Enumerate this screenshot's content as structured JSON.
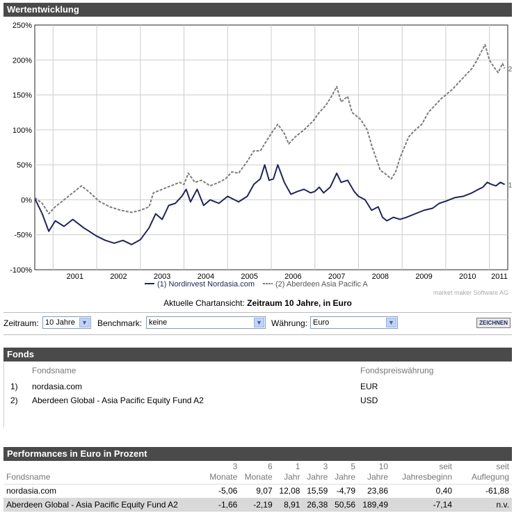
{
  "chart_header": "Wertentwicklung",
  "caption_prefix": "Aktuelle Chartansicht: ",
  "caption_bold": "Zeitraum 10 Jahre, in Euro",
  "watermark": "market maker Software AG",
  "chart_data": {
    "type": "line",
    "title": "",
    "xlabel": "",
    "ylabel": "",
    "ylim": [
      -100,
      250
    ],
    "y_ticks": [
      -100,
      -50,
      0,
      50,
      100,
      150,
      200,
      250
    ],
    "y_tick_labels": [
      "-100%",
      "-50%",
      "0%",
      "50%",
      "100%",
      "150%",
      "200%",
      "250%"
    ],
    "x_range": [
      2000.58,
      2011.42
    ],
    "x_tick_labels": [
      "2001",
      "2002",
      "2003",
      "2004",
      "2005",
      "2006",
      "2007",
      "2008",
      "2009",
      "2010",
      "2011"
    ],
    "grid": true,
    "legend": [
      "(1) Nordinvest Nordasia.com",
      "(2) Aberdeen Asia Pacific A"
    ],
    "legend_position": "bottom",
    "series": [
      {
        "name": "(1) Nordinvest Nordasia.com",
        "end_label": "1",
        "color": "#1f2459",
        "dash": "solid",
        "points": [
          [
            2000.58,
            2
          ],
          [
            2000.75,
            -20
          ],
          [
            2000.9,
            -45
          ],
          [
            2001.05,
            -30
          ],
          [
            2001.25,
            -38
          ],
          [
            2001.45,
            -28
          ],
          [
            2001.7,
            -40
          ],
          [
            2002.0,
            -52
          ],
          [
            2002.2,
            -58
          ],
          [
            2002.4,
            -62
          ],
          [
            2002.6,
            -58
          ],
          [
            2002.8,
            -64
          ],
          [
            2003.0,
            -57
          ],
          [
            2003.2,
            -40
          ],
          [
            2003.35,
            -20
          ],
          [
            2003.5,
            -28
          ],
          [
            2003.65,
            -8
          ],
          [
            2003.8,
            -5
          ],
          [
            2003.95,
            5
          ],
          [
            2004.05,
            15
          ],
          [
            2004.15,
            -3
          ],
          [
            2004.3,
            15
          ],
          [
            2004.45,
            -8
          ],
          [
            2004.6,
            0
          ],
          [
            2004.8,
            -5
          ],
          [
            2005.0,
            5
          ],
          [
            2005.25,
            -3
          ],
          [
            2005.45,
            5
          ],
          [
            2005.6,
            22
          ],
          [
            2005.75,
            30
          ],
          [
            2005.85,
            50
          ],
          [
            2005.95,
            28
          ],
          [
            2006.05,
            30
          ],
          [
            2006.15,
            50
          ],
          [
            2006.3,
            25
          ],
          [
            2006.45,
            8
          ],
          [
            2006.6,
            12
          ],
          [
            2006.75,
            15
          ],
          [
            2006.9,
            10
          ],
          [
            2007.0,
            12
          ],
          [
            2007.1,
            18
          ],
          [
            2007.2,
            10
          ],
          [
            2007.35,
            18
          ],
          [
            2007.5,
            38
          ],
          [
            2007.6,
            25
          ],
          [
            2007.75,
            28
          ],
          [
            2007.9,
            12
          ],
          [
            2008.0,
            5
          ],
          [
            2008.15,
            0
          ],
          [
            2008.3,
            -15
          ],
          [
            2008.45,
            -10
          ],
          [
            2008.55,
            -25
          ],
          [
            2008.65,
            -30
          ],
          [
            2008.8,
            -25
          ],
          [
            2008.95,
            -28
          ],
          [
            2009.1,
            -25
          ],
          [
            2009.3,
            -20
          ],
          [
            2009.5,
            -15
          ],
          [
            2009.7,
            -12
          ],
          [
            2009.85,
            -5
          ],
          [
            2010.0,
            -2
          ],
          [
            2010.2,
            3
          ],
          [
            2010.4,
            5
          ],
          [
            2010.6,
            10
          ],
          [
            2010.75,
            15
          ],
          [
            2010.85,
            18
          ],
          [
            2010.95,
            25
          ],
          [
            2011.05,
            22
          ],
          [
            2011.15,
            20
          ],
          [
            2011.25,
            25
          ],
          [
            2011.35,
            22
          ]
        ]
      },
      {
        "name": "(2) Aberdeen Asia Pacific A",
        "end_label": "2",
        "color": "#7c7c7c",
        "dash": "4,2",
        "points": [
          [
            2000.58,
            3
          ],
          [
            2000.75,
            -5
          ],
          [
            2000.9,
            -20
          ],
          [
            2001.05,
            -10
          ],
          [
            2001.25,
            0
          ],
          [
            2001.45,
            10
          ],
          [
            2001.65,
            20
          ],
          [
            2001.85,
            10
          ],
          [
            2002.05,
            -2
          ],
          [
            2002.3,
            -10
          ],
          [
            2002.55,
            -15
          ],
          [
            2002.8,
            -18
          ],
          [
            2003.0,
            -15
          ],
          [
            2003.2,
            -10
          ],
          [
            2003.3,
            10
          ],
          [
            2003.5,
            15
          ],
          [
            2003.7,
            20
          ],
          [
            2003.9,
            25
          ],
          [
            2004.0,
            22
          ],
          [
            2004.1,
            38
          ],
          [
            2004.25,
            25
          ],
          [
            2004.4,
            28
          ],
          [
            2004.6,
            20
          ],
          [
            2004.8,
            25
          ],
          [
            2004.95,
            30
          ],
          [
            2005.1,
            40
          ],
          [
            2005.25,
            38
          ],
          [
            2005.45,
            55
          ],
          [
            2005.6,
            70
          ],
          [
            2005.75,
            70
          ],
          [
            2005.9,
            85
          ],
          [
            2006.0,
            95
          ],
          [
            2006.15,
            108
          ],
          [
            2006.3,
            95
          ],
          [
            2006.4,
            80
          ],
          [
            2006.55,
            90
          ],
          [
            2006.75,
            100
          ],
          [
            2006.95,
            112
          ],
          [
            2007.1,
            125
          ],
          [
            2007.25,
            135
          ],
          [
            2007.4,
            150
          ],
          [
            2007.5,
            162
          ],
          [
            2007.6,
            140
          ],
          [
            2007.75,
            148
          ],
          [
            2007.85,
            125
          ],
          [
            2008.05,
            115
          ],
          [
            2008.2,
            100
          ],
          [
            2008.3,
            78
          ],
          [
            2008.4,
            60
          ],
          [
            2008.5,
            42
          ],
          [
            2008.6,
            38
          ],
          [
            2008.75,
            30
          ],
          [
            2008.85,
            40
          ],
          [
            2008.95,
            60
          ],
          [
            2009.05,
            75
          ],
          [
            2009.15,
            90
          ],
          [
            2009.3,
            100
          ],
          [
            2009.45,
            108
          ],
          [
            2009.6,
            125
          ],
          [
            2009.75,
            135
          ],
          [
            2009.9,
            145
          ],
          [
            2010.0,
            150
          ],
          [
            2010.15,
            158
          ],
          [
            2010.3,
            168
          ],
          [
            2010.45,
            178
          ],
          [
            2010.6,
            188
          ],
          [
            2010.7,
            198
          ],
          [
            2010.8,
            210
          ],
          [
            2010.9,
            222
          ],
          [
            2011.0,
            200
          ],
          [
            2011.1,
            190
          ],
          [
            2011.2,
            182
          ],
          [
            2011.3,
            195
          ],
          [
            2011.35,
            188
          ]
        ]
      }
    ]
  },
  "controls": {
    "zeitraum_label": "Zeitraum:",
    "zeitraum_value": "10 Jahre",
    "benchmark_label": "Benchmark:",
    "benchmark_value": "keine",
    "waehrung_label": "Währung:",
    "waehrung_value": "Euro",
    "submit_label": "ZEICHNEN"
  },
  "fonds": {
    "header": "Fonds",
    "col_name": "Fondsname",
    "col_currency": "Fondspreiswährung",
    "items": [
      {
        "num": "1)",
        "name": "nordasia.com",
        "currency": "EUR"
      },
      {
        "num": "2)",
        "name": "Aberdeen Global - Asia Pacific Equity Fund A2",
        "currency": "USD"
      }
    ]
  },
  "performance": {
    "header": "Performances in Euro in Prozent",
    "columns": [
      {
        "top": "",
        "bottom": "Fondsname"
      },
      {
        "top": "3",
        "bottom": "Monate"
      },
      {
        "top": "6",
        "bottom": "Monate"
      },
      {
        "top": "1",
        "bottom": "Jahr"
      },
      {
        "top": "3",
        "bottom": "Jahre"
      },
      {
        "top": "5",
        "bottom": "Jahre"
      },
      {
        "top": "10",
        "bottom": "Jahre"
      },
      {
        "top": "seit",
        "bottom": "Jahresbeginn"
      },
      {
        "top": "seit",
        "bottom": "Auflegung"
      }
    ],
    "rows": [
      [
        "nordasia.com",
        "-5,06",
        "9,07",
        "12,08",
        "15,59",
        "-4,79",
        "23,86",
        "0,40",
        "-61,88"
      ],
      [
        "Aberdeen Global - Asia Pacific Equity Fund A2",
        "-1,66",
        "-2,19",
        "8,91",
        "26,38",
        "50,56",
        "189,49",
        "-7,14",
        "n.v."
      ]
    ]
  }
}
